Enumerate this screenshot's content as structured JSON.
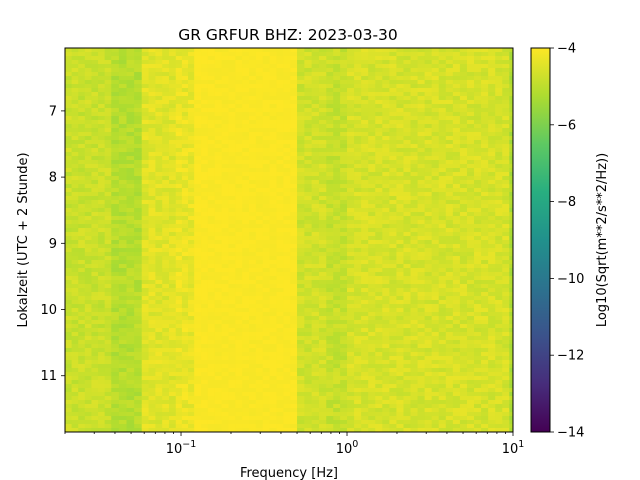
{
  "chart_data": {
    "type": "heatmap",
    "title": "GR GRFUR  BHZ: 2023-03-30",
    "xlabel": "Frequency [Hz]",
    "ylabel": "Lokalzeit (UTC + 2 Stunde)",
    "colorbar_label": "Log10(Sqrt(m**2/s**2/Hz))",
    "colormap": "viridis",
    "x_scale": "log",
    "xlim": [
      0.02,
      10
    ],
    "ylim": [
      11.85,
      6.05
    ],
    "y_inverted": true,
    "clim": [
      -14,
      -4
    ],
    "x_ticks": [
      {
        "value": 0.1,
        "base": "10",
        "exp": "−1"
      },
      {
        "value": 1,
        "base": "10",
        "exp": "0"
      },
      {
        "value": 10,
        "base": "10",
        "exp": "1"
      }
    ],
    "y_ticks": [
      {
        "value": 7,
        "label": "7"
      },
      {
        "value": 8,
        "label": "8"
      },
      {
        "value": 9,
        "label": "9"
      },
      {
        "value": 10,
        "label": "10"
      },
      {
        "value": 11,
        "label": "11"
      }
    ],
    "colorbar_ticks": [
      {
        "value": -4,
        "label": "−4"
      },
      {
        "value": -6,
        "label": "−6"
      },
      {
        "value": -8,
        "label": "−8"
      },
      {
        "value": -10,
        "label": "−10"
      },
      {
        "value": -12,
        "label": "−12"
      },
      {
        "value": -14,
        "label": "−14"
      }
    ],
    "frequency_bands": [
      {
        "f_min": 0.02,
        "f_max": 0.038,
        "level": -4.8
      },
      {
        "f_min": 0.038,
        "f_max": 0.058,
        "level": -5.1
      },
      {
        "f_min": 0.058,
        "f_max": 0.093,
        "level": -4.45
      },
      {
        "f_min": 0.093,
        "f_max": 0.12,
        "level": -4.3
      },
      {
        "f_min": 0.12,
        "f_max": 0.5,
        "level": -4.05
      },
      {
        "f_min": 0.5,
        "f_max": 0.75,
        "level": -4.7
      },
      {
        "f_min": 0.75,
        "f_max": 1.0,
        "level": -4.85
      },
      {
        "f_min": 1.0,
        "f_max": 9.5,
        "level": -4.6
      },
      {
        "f_min": 9.5,
        "f_max": 10,
        "level": -5.2
      }
    ]
  }
}
